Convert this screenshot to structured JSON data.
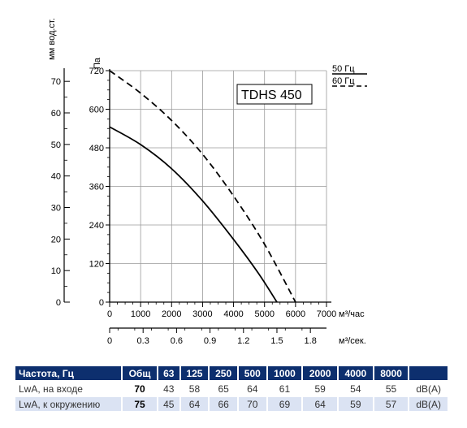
{
  "chart_data": {
    "type": "line",
    "model_label": "TDHS 450",
    "x_flow_m3h": {
      "unit": "м³/час",
      "ticks": [
        0,
        1000,
        2000,
        3000,
        4000,
        5000,
        6000,
        7000
      ],
      "range": [
        0,
        7000
      ]
    },
    "x_flow_m3s": {
      "unit": "м³/сек.",
      "ticks": [
        "0",
        "0.3",
        "0.6",
        "0.9",
        "1.2",
        "1.5",
        "1.8"
      ]
    },
    "y_pressure_pa": {
      "unit": "Па",
      "ticks": [
        0,
        120,
        240,
        360,
        480,
        600,
        720
      ],
      "range": [
        0,
        720
      ]
    },
    "y_pressure_mm": {
      "unit": "мм вод.ст.",
      "ticks": [
        0,
        10,
        20,
        30,
        40,
        50,
        60,
        70
      ]
    },
    "series": [
      {
        "name": "50 Гц",
        "style": "solid",
        "x": [
          0,
          1000,
          2000,
          3000,
          4000,
          4800,
          5400
        ],
        "y": [
          545,
          490,
          415,
          315,
          195,
          90,
          0
        ]
      },
      {
        "name": "60 Гц",
        "style": "dashed",
        "x": [
          0,
          1000,
          2000,
          3000,
          4000,
          5000,
          6000
        ],
        "y": [
          720,
          650,
          565,
          460,
          330,
          180,
          0
        ]
      }
    ],
    "grid": true
  },
  "table": {
    "headers": [
      "Частота, Гц",
      "Общ",
      "63",
      "125",
      "250",
      "500",
      "1000",
      "2000",
      "4000",
      "8000",
      ""
    ],
    "rows": [
      [
        "LwA, на входе",
        "70",
        "43",
        "58",
        "65",
        "64",
        "61",
        "59",
        "54",
        "55",
        "dB(A)"
      ],
      [
        "LwA, к окружению",
        "75",
        "45",
        "64",
        "66",
        "70",
        "69",
        "64",
        "59",
        "57",
        "dB(A)"
      ]
    ]
  }
}
